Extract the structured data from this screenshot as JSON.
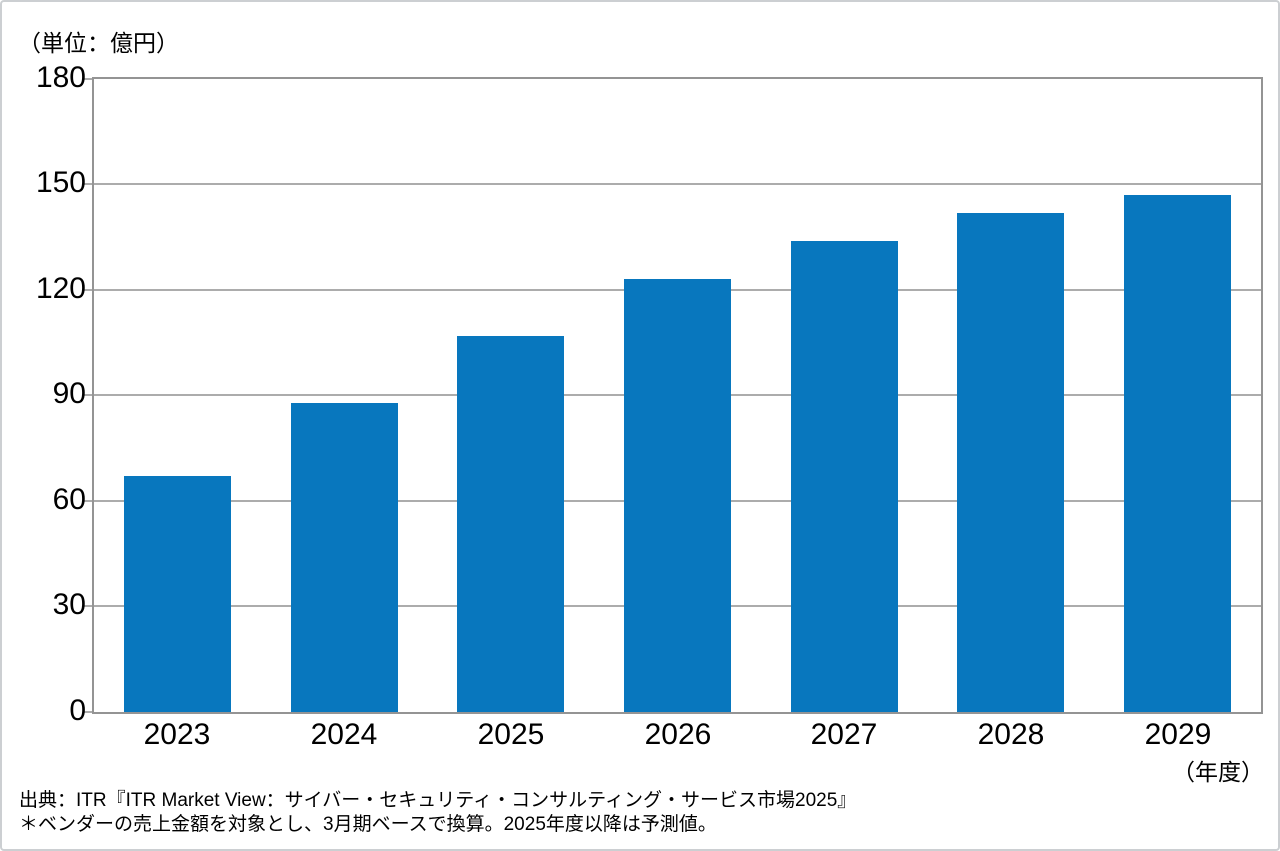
{
  "chart_data": {
    "type": "bar",
    "unit_label": "（単位：億円）",
    "categories": [
      "2023",
      "2024",
      "2025",
      "2026",
      "2027",
      "2028",
      "2029"
    ],
    "values": [
      67,
      88,
      107,
      123,
      134,
      142,
      147
    ],
    "x_axis_unit": "（年度）",
    "ylim": [
      0,
      180
    ],
    "yticks": [
      0,
      30,
      60,
      90,
      120,
      150,
      180
    ],
    "grid": true,
    "legend": "none",
    "bar_color": "#0877be",
    "gridline_color": "#acacac",
    "axis_border_color": "#949494",
    "source_note": "出典：ITR『ITR Market View：サイバー・セキュリティ・コンサルティング・サービス市場2025』",
    "footnote": "＊ベンダーの売上金額を対象とし、3月期ベースで換算。2025年度以降は予測値。"
  }
}
